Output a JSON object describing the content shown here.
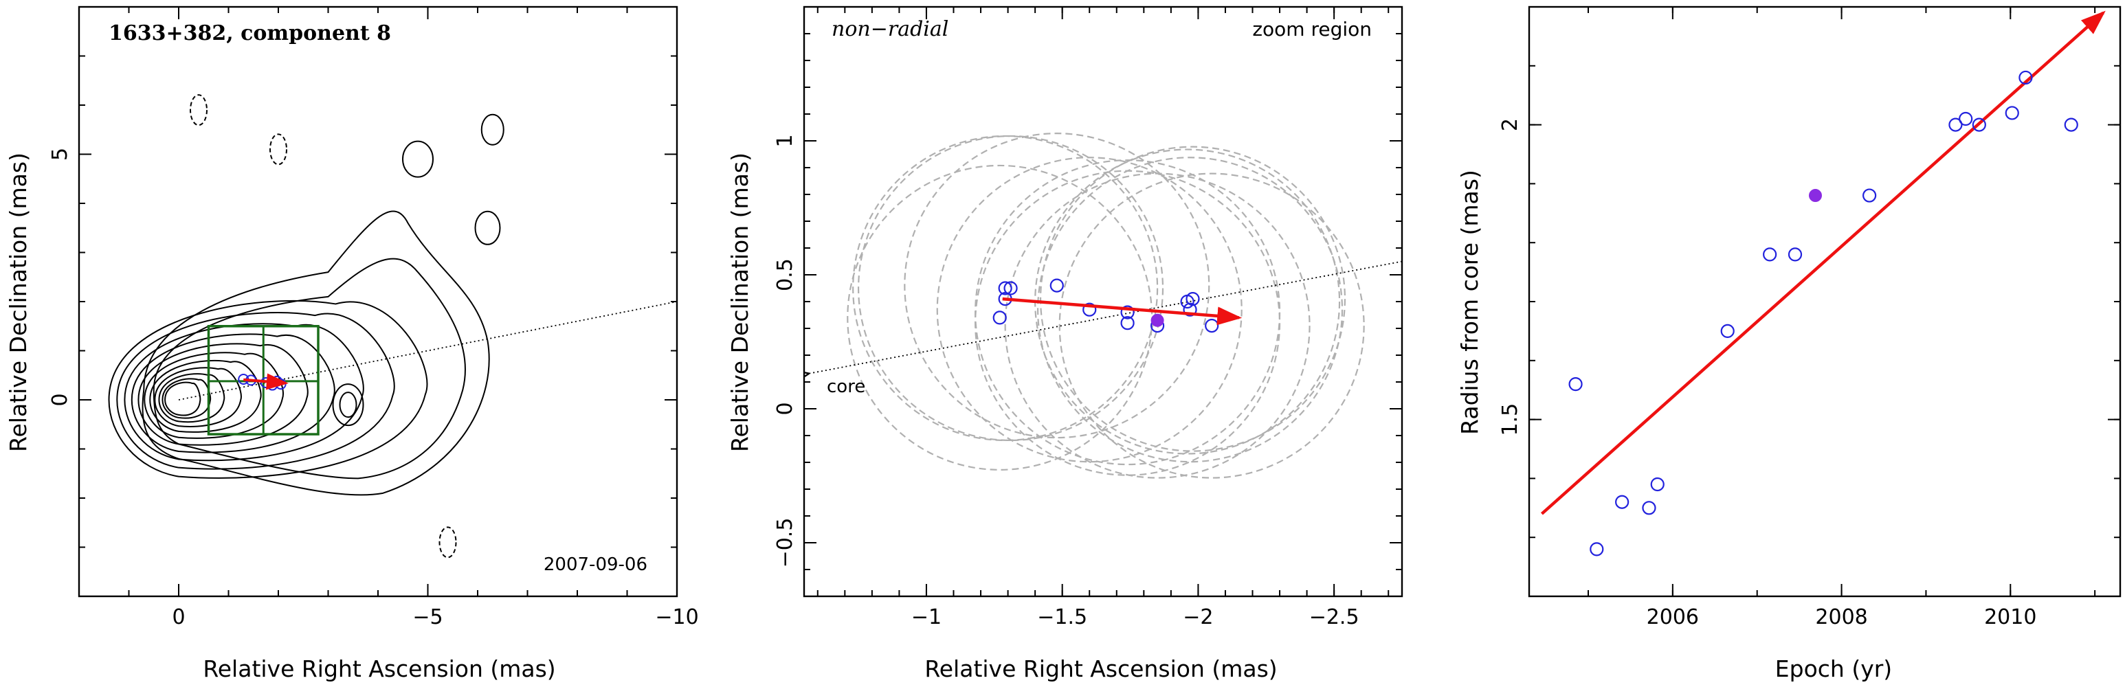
{
  "colors": {
    "arrow": "#ee1111",
    "points": "#2222dd",
    "highlight": "#8a2be2",
    "contour": "#000000",
    "box": "#1a6e1a",
    "circles": "#b0b0b0"
  },
  "chart_data": [
    {
      "type": "contour",
      "title": "1633+382, component 8",
      "date_label": "2007-09-06",
      "xlabel": "Relative Right Ascension (mas)",
      "ylabel": "Relative Declination (mas)",
      "xlim": [
        2,
        -10
      ],
      "ylim": [
        -4,
        8
      ],
      "xticks": [
        0,
        -5,
        -10
      ],
      "yticks": [
        0,
        5
      ],
      "jet_axis": {
        "x0": 0,
        "y0": 0,
        "slope": -0.2
      },
      "contour_levels": 11,
      "negative_contours": [
        {
          "x": -0.4,
          "y": 5.9
        },
        {
          "x": -2.0,
          "y": 5.1
        },
        {
          "x": -5.4,
          "y": -2.9
        }
      ],
      "zoom_box": {
        "x": [
          -0.6,
          -2.8
        ],
        "y": [
          -0.7,
          1.5
        ]
      },
      "component_points": [
        {
          "x": -1.3,
          "y": 0.42
        },
        {
          "x": -1.45,
          "y": 0.4
        },
        {
          "x": -1.75,
          "y": 0.35
        },
        {
          "x": -1.88,
          "y": 0.3
        },
        {
          "x": -1.97,
          "y": 0.38
        },
        {
          "x": -2.05,
          "y": 0.32
        }
      ],
      "motion_vector": {
        "from": [
          -1.3,
          0.41
        ],
        "to": [
          -2.15,
          0.34
        ]
      }
    },
    {
      "type": "scatter",
      "title": "non−radial",
      "corner_label": "zoom region",
      "core_label": "core",
      "xlabel": "Relative Right Ascension (mas)",
      "ylabel": "Relative Declination (mas)",
      "xlim": [
        -0.55,
        -2.75
      ],
      "ylim": [
        -0.7,
        1.5
      ],
      "xticks": [
        -1,
        -1.5,
        -2,
        -2.5
      ],
      "yticks": [
        -0.5,
        0,
        0.5,
        1
      ],
      "points": [
        {
          "x": -1.27,
          "y": 0.34
        },
        {
          "x": -1.29,
          "y": 0.45
        },
        {
          "x": -1.29,
          "y": 0.41
        },
        {
          "x": -1.31,
          "y": 0.45
        },
        {
          "x": -1.48,
          "y": 0.46
        },
        {
          "x": -1.6,
          "y": 0.37
        },
        {
          "x": -1.74,
          "y": 0.36
        },
        {
          "x": -1.74,
          "y": 0.32
        },
        {
          "x": -1.85,
          "y": 0.31
        },
        {
          "x": -1.96,
          "y": 0.4
        },
        {
          "x": -1.97,
          "y": 0.37
        },
        {
          "x": -1.98,
          "y": 0.41
        },
        {
          "x": -2.05,
          "y": 0.31
        }
      ],
      "highlight_point": {
        "x": -1.85,
        "y": 0.33
      },
      "circle_centers": [
        {
          "x": -1.27,
          "y": 0.34
        },
        {
          "x": -1.29,
          "y": 0.45
        },
        {
          "x": -1.31,
          "y": 0.45
        },
        {
          "x": -1.48,
          "y": 0.46
        },
        {
          "x": -1.6,
          "y": 0.37
        },
        {
          "x": -1.74,
          "y": 0.36
        },
        {
          "x": -1.74,
          "y": 0.32
        },
        {
          "x": -1.85,
          "y": 0.31
        },
        {
          "x": -1.96,
          "y": 0.4
        },
        {
          "x": -1.97,
          "y": 0.37
        },
        {
          "x": -1.98,
          "y": 0.41
        },
        {
          "x": -2.05,
          "y": 0.31
        }
      ],
      "circle_radius": 0.56,
      "jet_axis": {
        "x0": 0,
        "y0": 0,
        "slope": -0.2
      },
      "motion_vector": {
        "from": [
          -1.28,
          0.41
        ],
        "to": [
          -2.15,
          0.34
        ]
      }
    },
    {
      "type": "scatter",
      "xlabel": "Epoch (yr)",
      "ylabel": "Radius from core (mas)",
      "xlim": [
        2004.3,
        2011.3
      ],
      "ylim": [
        1.2,
        2.2
      ],
      "xticks": [
        2006,
        2008,
        2010
      ],
      "yticks": [
        1.5,
        2
      ],
      "points": [
        {
          "x": 2004.85,
          "y": 1.56
        },
        {
          "x": 2005.1,
          "y": 1.28
        },
        {
          "x": 2005.4,
          "y": 1.36
        },
        {
          "x": 2005.72,
          "y": 1.35
        },
        {
          "x": 2005.82,
          "y": 1.39
        },
        {
          "x": 2006.65,
          "y": 1.65
        },
        {
          "x": 2007.15,
          "y": 1.78
        },
        {
          "x": 2007.45,
          "y": 1.78
        },
        {
          "x": 2008.33,
          "y": 1.88
        },
        {
          "x": 2009.35,
          "y": 2.0
        },
        {
          "x": 2009.47,
          "y": 2.01
        },
        {
          "x": 2009.63,
          "y": 2.0
        },
        {
          "x": 2010.02,
          "y": 2.02
        },
        {
          "x": 2010.18,
          "y": 2.08
        },
        {
          "x": 2010.72,
          "y": 2.0
        }
      ],
      "highlight_point": {
        "x": 2007.69,
        "y": 1.88
      },
      "fit_line": {
        "from": [
          2004.45,
          1.34
        ],
        "to": [
          2011.1,
          2.19
        ]
      }
    }
  ]
}
